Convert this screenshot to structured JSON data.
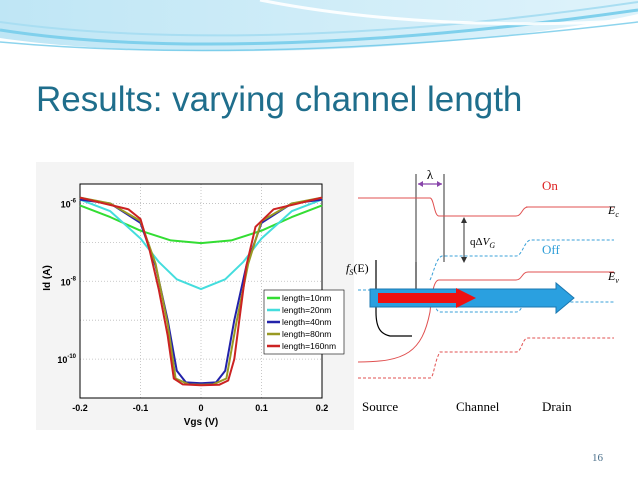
{
  "slide": {
    "title": "Results: varying channel length",
    "page_number": "16"
  },
  "chart_data": {
    "type": "line",
    "xlabel": "Vgs (V)",
    "ylabel": "Id (A)",
    "xlim": [
      -0.2,
      0.2
    ],
    "ylim_log10": [
      -11,
      -5.5
    ],
    "x_ticks": [
      "-0.2",
      "-0.1",
      "0",
      "0.1",
      "0.2"
    ],
    "y_ticks": [
      {
        "base": "10",
        "exp": "-6",
        "log": -6
      },
      {
        "base": "10",
        "exp": "-8",
        "log": -8
      },
      {
        "base": "10",
        "exp": "-10",
        "log": -10
      }
    ],
    "grid": true,
    "legend_placement": "bottom-right",
    "series": [
      {
        "name": "length=10nm",
        "color": "#33dd33",
        "points": [
          [
            -0.2,
            -6.05
          ],
          [
            -0.15,
            -6.35
          ],
          [
            -0.1,
            -6.7
          ],
          [
            -0.05,
            -6.95
          ],
          [
            0,
            -7.02
          ],
          [
            0.05,
            -6.95
          ],
          [
            0.1,
            -6.7
          ],
          [
            0.15,
            -6.35
          ],
          [
            0.2,
            -6.05
          ]
        ]
      },
      {
        "name": "length=20nm",
        "color": "#44dddd",
        "points": [
          [
            -0.2,
            -5.9
          ],
          [
            -0.15,
            -6.2
          ],
          [
            -0.1,
            -6.9
          ],
          [
            -0.07,
            -7.5
          ],
          [
            -0.04,
            -7.95
          ],
          [
            0,
            -8.2
          ],
          [
            0.04,
            -7.95
          ],
          [
            0.07,
            -7.5
          ],
          [
            0.1,
            -6.9
          ],
          [
            0.15,
            -6.2
          ],
          [
            0.2,
            -5.9
          ]
        ]
      },
      {
        "name": "length=40nm",
        "color": "#2222aa",
        "points": [
          [
            -0.2,
            -5.9
          ],
          [
            -0.15,
            -6.0
          ],
          [
            -0.1,
            -6.5
          ],
          [
            -0.075,
            -7.6
          ],
          [
            -0.055,
            -9.0
          ],
          [
            -0.04,
            -10.3
          ],
          [
            -0.025,
            -10.6
          ],
          [
            0,
            -10.62
          ],
          [
            0.025,
            -10.6
          ],
          [
            0.04,
            -10.3
          ],
          [
            0.055,
            -9.0
          ],
          [
            0.075,
            -7.6
          ],
          [
            0.1,
            -6.5
          ],
          [
            0.15,
            -6.0
          ],
          [
            0.2,
            -5.9
          ]
        ]
      },
      {
        "name": "length=80nm",
        "color": "#999922",
        "points": [
          [
            -0.2,
            -5.85
          ],
          [
            -0.15,
            -6.0
          ],
          [
            -0.1,
            -6.45
          ],
          [
            -0.075,
            -7.55
          ],
          [
            -0.055,
            -9.1
          ],
          [
            -0.042,
            -10.5
          ],
          [
            -0.02,
            -10.65
          ],
          [
            0,
            -10.66
          ],
          [
            0.02,
            -10.65
          ],
          [
            0.042,
            -10.5
          ],
          [
            0.058,
            -9.1
          ],
          [
            0.078,
            -7.55
          ],
          [
            0.1,
            -6.45
          ],
          [
            0.15,
            -6.0
          ],
          [
            0.2,
            -5.85
          ]
        ]
      },
      {
        "name": "length=160nm",
        "color": "#cc2222",
        "points": [
          [
            -0.2,
            -5.85
          ],
          [
            -0.16,
            -6.0
          ],
          [
            -0.12,
            -6.15
          ],
          [
            -0.1,
            -6.4
          ],
          [
            -0.085,
            -7.2
          ],
          [
            -0.07,
            -8.2
          ],
          [
            -0.055,
            -9.4
          ],
          [
            -0.045,
            -10.5
          ],
          [
            -0.03,
            -10.65
          ],
          [
            0,
            -10.67
          ],
          [
            0.03,
            -10.66
          ],
          [
            0.045,
            -10.55
          ],
          [
            0.055,
            -10.0
          ],
          [
            0.065,
            -8.8
          ],
          [
            0.075,
            -7.6
          ],
          [
            0.09,
            -6.6
          ],
          [
            0.12,
            -6.15
          ],
          [
            0.16,
            -6.0
          ],
          [
            0.2,
            -5.85
          ]
        ]
      }
    ]
  },
  "band_diagram": {
    "lambda_label": "λ",
    "on_label": "On",
    "off_label": "Off",
    "ec_label": {
      "main": "E",
      "sub": "c"
    },
    "ev_label": {
      "main": "E",
      "sub": "v"
    },
    "fs_label": {
      "main": "f",
      "sub": "S",
      "arg": "(E)"
    },
    "qdv_label": {
      "q": "qΔ",
      "main": "V",
      "sub": "G"
    },
    "region_labels": [
      "Source",
      "Channel",
      "Drain"
    ],
    "colors": {
      "on": "#e05050",
      "off": "#3aa0d8",
      "arrow_red": "#ee1111",
      "arrow_blue": "#2aa0e0",
      "label_red": "#dd2222",
      "label_blue": "#2f9ed8",
      "lambda": "#8844aa"
    }
  }
}
